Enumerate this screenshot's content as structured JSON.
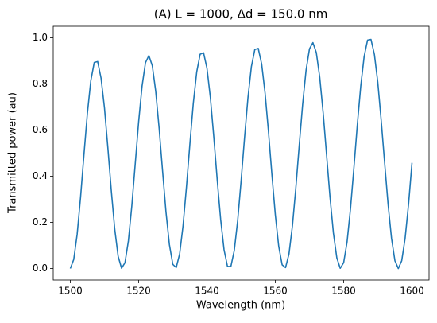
{
  "chart_data": {
    "type": "line",
    "title": "(A) L = 1000, Δd = 150.0 nm",
    "xlabel": "Wavelength (nm)",
    "ylabel": "Transmitted power (au)",
    "x": [
      1500,
      1501,
      1502,
      1503,
      1504,
      1505,
      1506,
      1507,
      1508,
      1509,
      1510,
      1511,
      1512,
      1513,
      1514,
      1515,
      1516,
      1517,
      1518,
      1519,
      1520,
      1521,
      1522,
      1523,
      1524,
      1525,
      1526,
      1527,
      1528,
      1529,
      1530,
      1531,
      1532,
      1533,
      1534,
      1535,
      1536,
      1537,
      1538,
      1539,
      1540,
      1541,
      1542,
      1543,
      1544,
      1545,
      1546,
      1547,
      1548,
      1549,
      1550,
      1551,
      1552,
      1553,
      1554,
      1555,
      1556,
      1557,
      1558,
      1559,
      1560,
      1561,
      1562,
      1563,
      1564,
      1565,
      1566,
      1567,
      1568,
      1569,
      1570,
      1571,
      1572,
      1573,
      1574,
      1575,
      1576,
      1577,
      1578,
      1579,
      1580,
      1581,
      1582,
      1583,
      1584,
      1585,
      1586,
      1587,
      1588,
      1589,
      1590,
      1591,
      1592,
      1593,
      1594,
      1595,
      1596,
      1597,
      1598,
      1599,
      1600
    ],
    "series": [
      {
        "color": "#1f77b4",
        "values": [
          0.0,
          0.039,
          0.148,
          0.309,
          0.495,
          0.673,
          0.814,
          0.893,
          0.897,
          0.825,
          0.696,
          0.522,
          0.337,
          0.171,
          0.053,
          0.001,
          0.025,
          0.12,
          0.271,
          0.453,
          0.636,
          0.79,
          0.892,
          0.923,
          0.879,
          0.768,
          0.608,
          0.424,
          0.246,
          0.104,
          0.018,
          0.004,
          0.063,
          0.186,
          0.354,
          0.54,
          0.716,
          0.852,
          0.929,
          0.935,
          0.868,
          0.74,
          0.569,
          0.384,
          0.213,
          0.081,
          0.009,
          0.009,
          0.079,
          0.21,
          0.382,
          0.568,
          0.741,
          0.875,
          0.949,
          0.954,
          0.887,
          0.761,
          0.593,
          0.407,
          0.233,
          0.096,
          0.016,
          0.004,
          0.063,
          0.184,
          0.348,
          0.534,
          0.712,
          0.859,
          0.952,
          0.979,
          0.936,
          0.829,
          0.675,
          0.493,
          0.31,
          0.154,
          0.046,
          0.001,
          0.025,
          0.115,
          0.259,
          0.436,
          0.622,
          0.79,
          0.919,
          0.99,
          0.993,
          0.928,
          0.806,
          0.64,
          0.457,
          0.279,
          0.132,
          0.034,
          0.0,
          0.034,
          0.132,
          0.279,
          0.458
        ]
      }
    ],
    "xlim": [
      1495,
      1605
    ],
    "ylim": [
      -0.05,
      1.05
    ],
    "xticks": [
      1500,
      1520,
      1540,
      1560,
      1580,
      1600
    ],
    "yticks": [
      {
        "value": 0,
        "label": "0.0"
      },
      0.2,
      0.4,
      0.6,
      0.8,
      {
        "value": 1,
        "label": "1.0"
      }
    ],
    "grid": false
  }
}
